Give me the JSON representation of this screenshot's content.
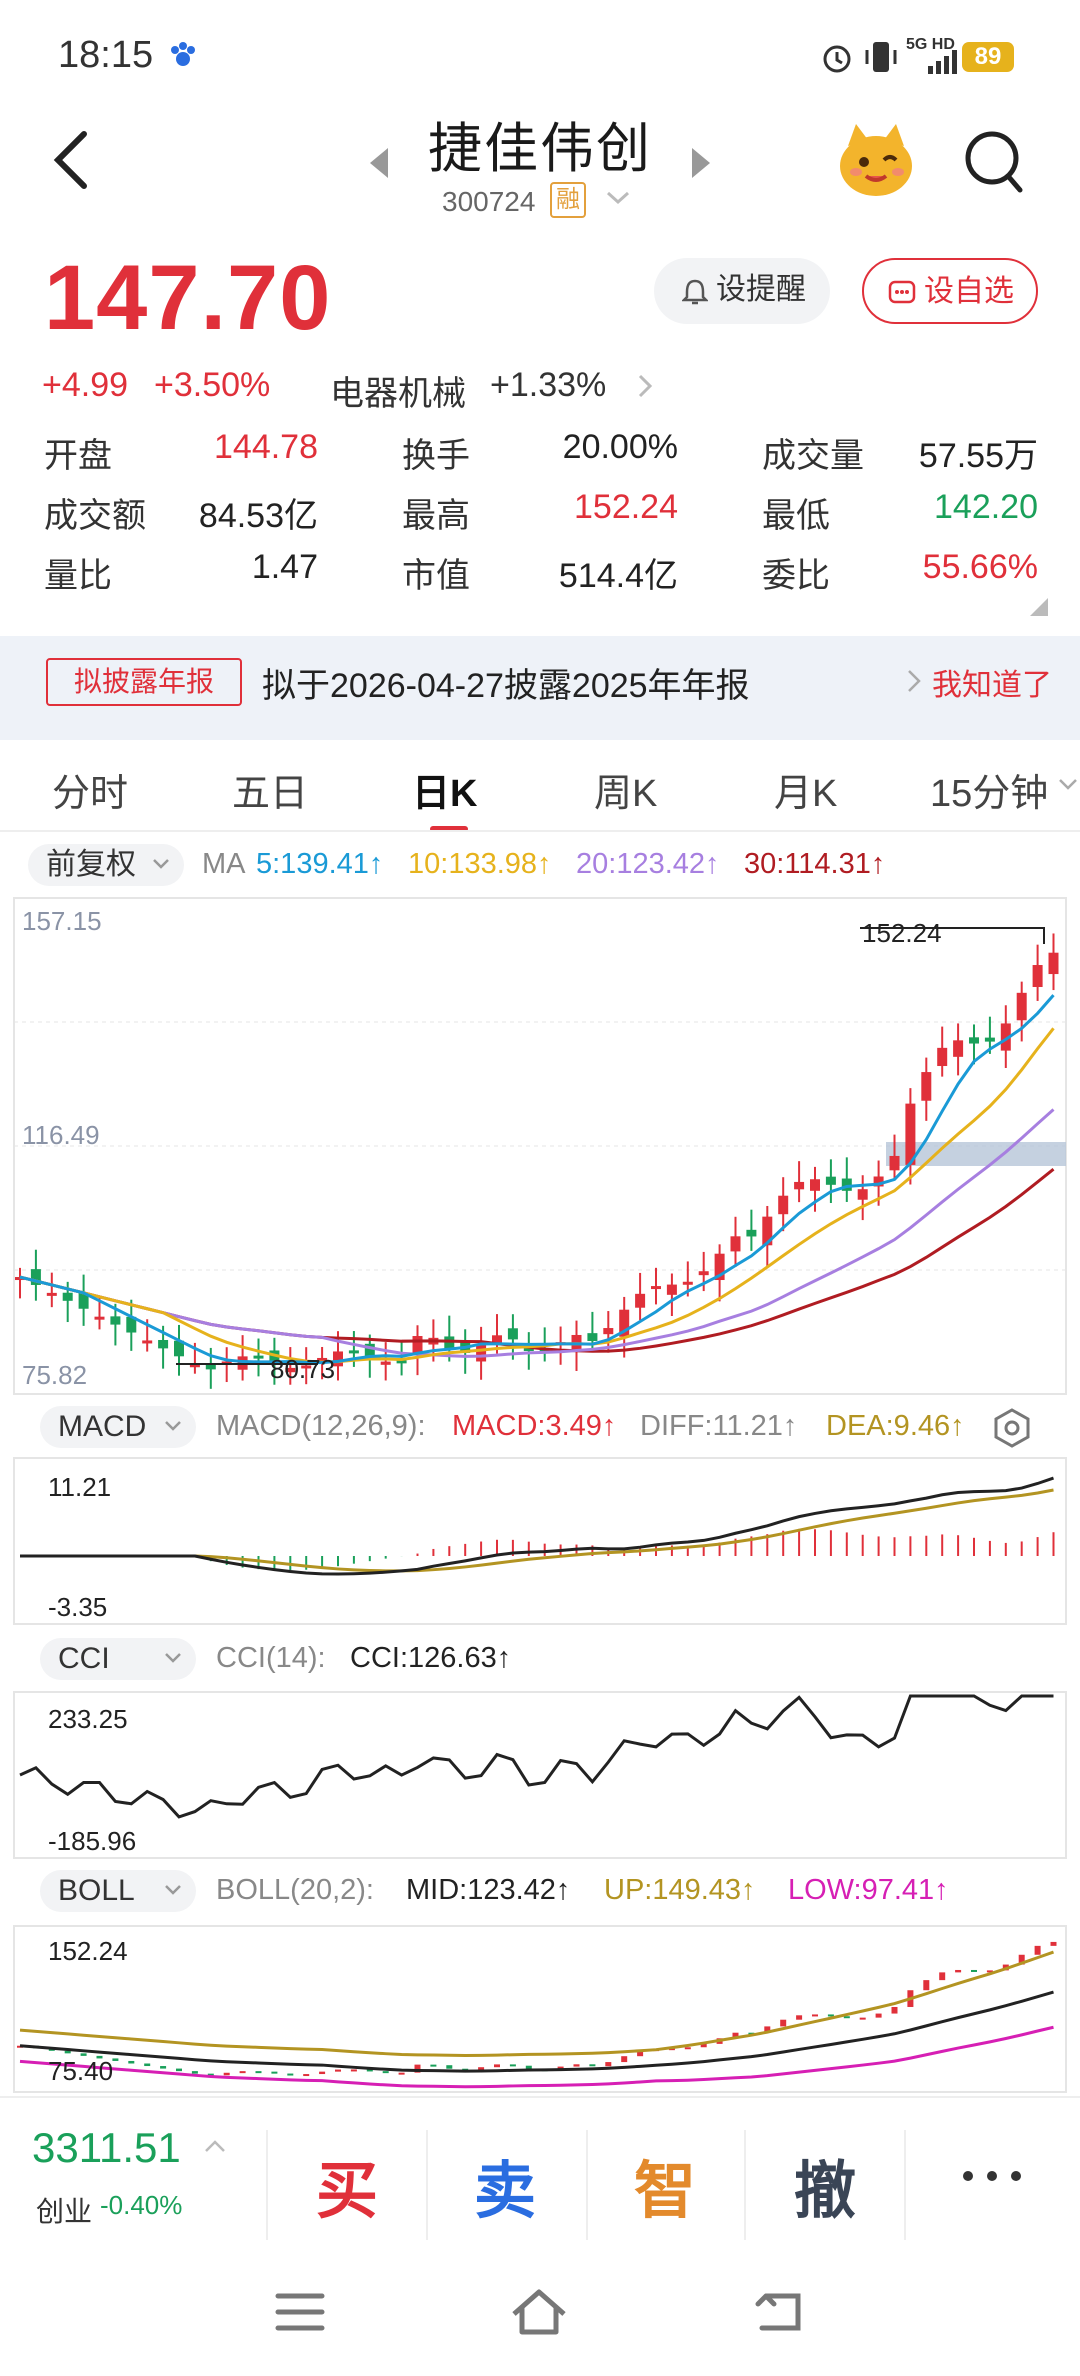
{
  "status": {
    "time": "18:15",
    "battery": "89",
    "net": "5G HD"
  },
  "header": {
    "title": "捷佳伟创",
    "code": "300724",
    "badge": "融"
  },
  "quote": {
    "price": "147.70",
    "change": "+4.99",
    "change_pct": "+3.50%",
    "sector": "电器机械",
    "sector_pct": "+1.33%",
    "remind_label": "设提醒",
    "fav_label": "设自选",
    "stats": [
      {
        "label": "开盘",
        "value": "144.78",
        "color": "red"
      },
      {
        "label": "换手",
        "value": "20.00%",
        "color": "dark"
      },
      {
        "label": "成交量",
        "value": "57.55万",
        "color": "dark"
      },
      {
        "label": "成交额",
        "value": "84.53亿",
        "color": "dark"
      },
      {
        "label": "最高",
        "value": "152.24",
        "color": "red"
      },
      {
        "label": "最低",
        "value": "142.20",
        "color": "green"
      },
      {
        "label": "量比",
        "value": "1.47",
        "color": "dark"
      },
      {
        "label": "市值",
        "value": "514.4亿",
        "color": "dark"
      },
      {
        "label": "委比",
        "value": "55.66%",
        "color": "red"
      }
    ]
  },
  "banner": {
    "tag": "拟披露年报",
    "text": "拟于2026-04-27披露2025年年报",
    "dismiss": "我知道了"
  },
  "tabs": [
    "分时",
    "五日",
    "日K",
    "周K",
    "月K",
    "15分钟"
  ],
  "kline": {
    "fq_label": "前复权",
    "ma_label": "MA",
    "ma": [
      {
        "label": "5:139.41↑",
        "color": "#1a9ad6"
      },
      {
        "label": "10:133.98↑",
        "color": "#e6b21c"
      },
      {
        "label": "20:123.42↑",
        "color": "#a77fe0"
      },
      {
        "label": "30:114.31↑",
        "color": "#b01c22"
      }
    ],
    "axis_top": "157.15",
    "axis_mid": "116.49",
    "axis_bottom": "75.82",
    "high_mark": "152.24",
    "low_mark": "80.73"
  },
  "macd": {
    "btn": "MACD",
    "params": "MACD(12,26,9):",
    "macd": "MACD:3.49↑",
    "diff": "DIFF:11.21↑",
    "dea": "DEA:9.46↑",
    "axis_top": "11.21",
    "axis_bottom": "-3.35"
  },
  "cci": {
    "btn": "CCI",
    "params": "CCI(14):",
    "value": "CCI:126.63↑",
    "axis_top": "233.25",
    "axis_bottom": "-185.96"
  },
  "boll": {
    "btn": "BOLL",
    "params": "BOLL(20,2):",
    "mid": "MID:123.42↑",
    "up": "UP:149.43↑",
    "low": "LOW:97.41↑",
    "axis_top": "152.24",
    "axis_bottom": "75.40"
  },
  "bottom": {
    "index_value": "3311.51",
    "index_name": "创业",
    "index_pct": "-0.40%",
    "actions": [
      "买",
      "卖",
      "智",
      "撤"
    ]
  }
}
